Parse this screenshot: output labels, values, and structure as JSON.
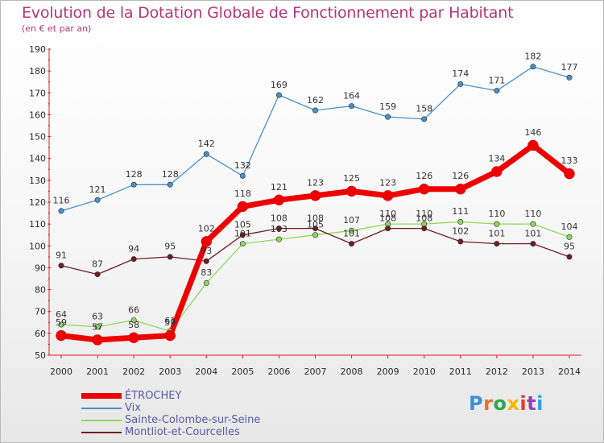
{
  "header": {
    "title": "Evolution de la Dotation Globale de Fonctionnement par Habitant",
    "subtitle": "(en € et par an)"
  },
  "logo": {
    "text": "Proxiti",
    "colors": [
      "#3b8fd6",
      "#e8702a",
      "#2ea84a",
      "#f2b705",
      "#e63a2e",
      "#9c3dba",
      "#2f9fd8"
    ]
  },
  "chart_data": {
    "type": "line",
    "x": [
      2000,
      2001,
      2002,
      2003,
      2004,
      2005,
      2006,
      2007,
      2008,
      2009,
      2010,
      2011,
      2012,
      2013,
      2014
    ],
    "ylim": [
      50,
      190
    ],
    "yticks": [
      50,
      60,
      70,
      80,
      90,
      100,
      110,
      120,
      130,
      140,
      150,
      160,
      170,
      180,
      190
    ],
    "grid": false,
    "legend_position": "bottom-left",
    "series": [
      {
        "name": "Vix",
        "color": "#4a90c8",
        "values": [
          116,
          121,
          128,
          128,
          142,
          132,
          169,
          162,
          164,
          159,
          158,
          174,
          171,
          182,
          177
        ]
      },
      {
        "name": "Sainte-Colombe-sur-Seine",
        "color": "#8fd85a",
        "values": [
          64,
          63,
          66,
          61,
          83,
          101,
          103,
          105,
          107,
          110,
          110,
          111,
          110,
          110,
          104
        ]
      },
      {
        "name": "Montliot-et-Courcelles",
        "color": "#6e1f24",
        "values": [
          91,
          87,
          94,
          95,
          93,
          105,
          108,
          108,
          101,
          108,
          108,
          102,
          101,
          101,
          95
        ]
      },
      {
        "name": "ÉTROCHEY",
        "color": "#ee0000",
        "values": [
          59,
          57,
          58,
          59,
          102,
          118,
          121,
          123,
          125,
          123,
          126,
          126,
          134,
          146,
          133
        ]
      }
    ],
    "legend_order": [
      "ÉTROCHEY",
      "Vix",
      "Sainte-Colombe-sur-Seine",
      "Montliot-et-Courcelles"
    ]
  }
}
